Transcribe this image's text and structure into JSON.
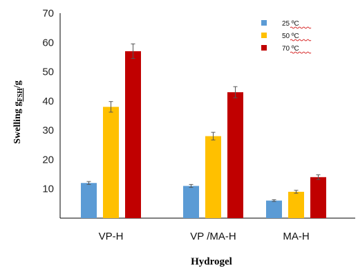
{
  "chart_data": {
    "type": "bar",
    "categories": [
      "VP-H",
      "VP /MA-H",
      "MA-H"
    ],
    "series": [
      {
        "name": "25 ºC",
        "color": "#5b9bd5",
        "values": [
          12,
          11,
          6
        ],
        "errors": [
          0.5,
          0.5,
          0.3
        ]
      },
      {
        "name": "50 ºC",
        "color": "#ffc000",
        "values": [
          38,
          28,
          9
        ],
        "errors": [
          1.8,
          1.3,
          0.5
        ]
      },
      {
        "name": "70 ºC",
        "color": "#c00000",
        "values": [
          57,
          43,
          14
        ],
        "errors": [
          2.5,
          1.9,
          0.8
        ]
      }
    ],
    "xlabel": "Hydrogel",
    "ylabel": "Swelling g",
    "ylabel_sub": "FSH",
    "ylabel_suffix": "/g",
    "yticks": [
      10,
      20,
      30,
      40,
      50,
      60,
      70
    ],
    "ylim": [
      0,
      70
    ],
    "grid": false,
    "legend_position": "top-right"
  }
}
